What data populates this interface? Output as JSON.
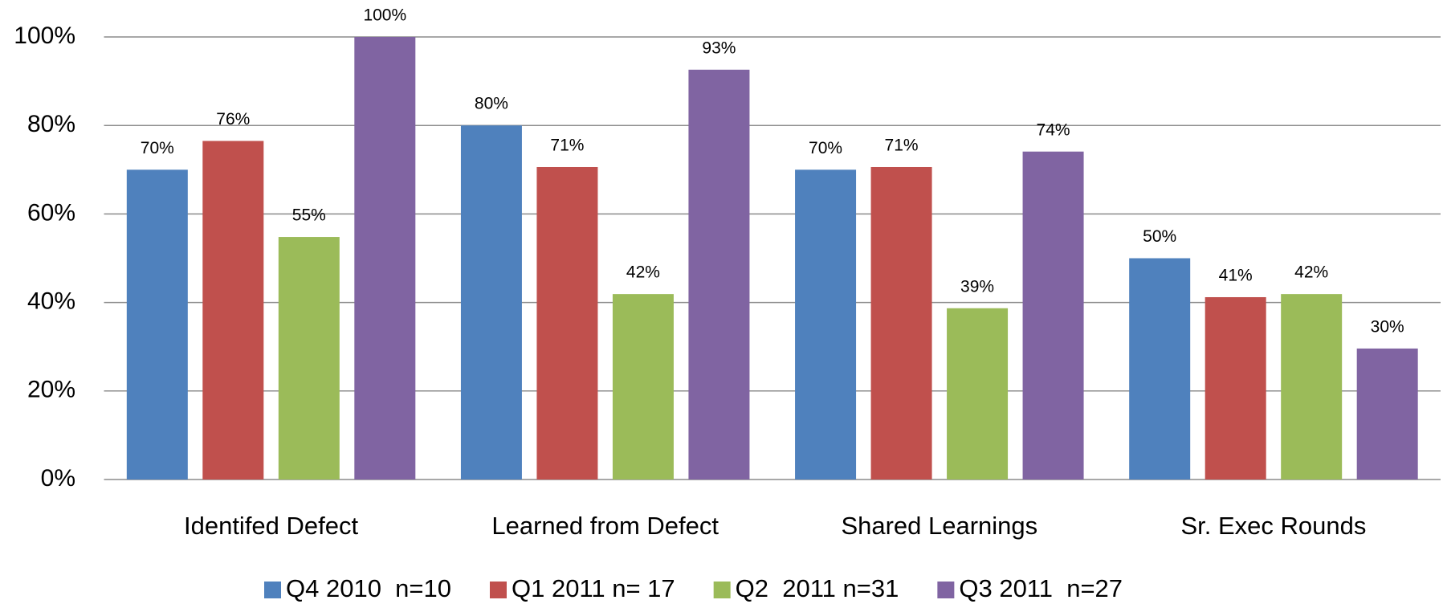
{
  "chart_data": {
    "type": "bar",
    "categories": [
      "Identifed Defect",
      "Learned from Defect",
      "Shared Learnings",
      "Sr. Exec Rounds"
    ],
    "series": [
      {
        "name": "Q4 2010  n=10",
        "color": "#4f81bd",
        "values": [
          70,
          80,
          70,
          50
        ],
        "value_labels": [
          "70%",
          "80%",
          "70%",
          "50%"
        ]
      },
      {
        "name": "Q1 2011 n= 17",
        "color": "#c0504d",
        "values": [
          76.5,
          70.6,
          70.6,
          41.2
        ],
        "value_labels": [
          "76%",
          "71%",
          "71%",
          "41%"
        ]
      },
      {
        "name": "Q2  2011 n=31",
        "color": "#9bbb59",
        "values": [
          54.8,
          41.9,
          38.7,
          41.9
        ],
        "value_labels": [
          "55%",
          "42%",
          "39%",
          "42%"
        ]
      },
      {
        "name": "Q3 2011  n=27",
        "color": "#8064a2",
        "values": [
          100,
          92.6,
          74.1,
          29.6
        ],
        "value_labels": [
          "100%",
          "93%",
          "74%",
          "30%"
        ]
      }
    ],
    "ylim": [
      0,
      100
    ],
    "yticks": [
      {
        "value": 0,
        "label": "0%"
      },
      {
        "value": 20,
        "label": "20%"
      },
      {
        "value": 40,
        "label": "40%"
      },
      {
        "value": 60,
        "label": "60%"
      },
      {
        "value": 80,
        "label": "80%"
      },
      {
        "value": 100,
        "label": "100%"
      }
    ],
    "grid": true,
    "legend": "bottom"
  }
}
